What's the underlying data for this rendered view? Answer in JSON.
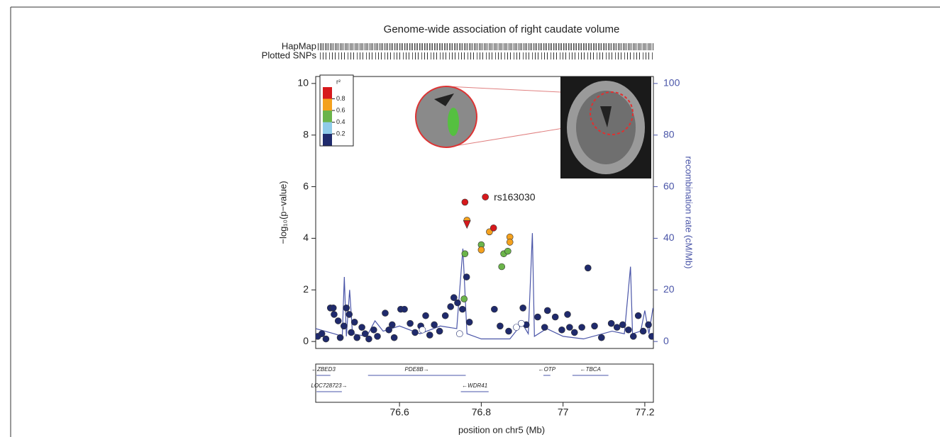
{
  "chart_data": {
    "type": "scatter",
    "title": "Genome-wide association of right caudate volume",
    "rug_labels": [
      "HapMap",
      "Plotted SNPs"
    ],
    "x_label": "position on chr5 (Mb)",
    "y_label": "−log₁₀(p−value)",
    "y2_label": "recombination rate (cM/Mb)",
    "annotation": {
      "text": "rs163030",
      "x": 76.81,
      "y": 5.6
    },
    "xlim": [
      76.395,
      77.221
    ],
    "xticks": [
      76.6,
      76.8,
      77,
      77.2
    ],
    "ylim": [
      -0.27,
      10.27
    ],
    "yticks": [
      0,
      2,
      4,
      6,
      8,
      10
    ],
    "y2lim": [
      -2.7,
      102.7
    ],
    "y2ticks": [
      0,
      20,
      40,
      60,
      80,
      100
    ],
    "legend": {
      "title": "r²",
      "colors": [
        "#d7191c",
        "#f4a11e",
        "#6bb44a",
        "#8fcbe9",
        "#1f2a6c"
      ],
      "ticks": [
        0.8,
        0.6,
        0.4,
        0.2
      ]
    },
    "series": [
      {
        "type": "line",
        "axis": "y2",
        "color": "#4a55a8",
        "x": [
          76.395,
          76.44,
          76.46,
          76.465,
          76.47,
          76.478,
          76.485,
          76.52,
          76.54,
          76.56,
          76.6,
          76.65,
          76.7,
          76.74,
          76.755,
          76.765,
          76.8,
          76.87,
          76.9,
          76.915,
          76.925,
          76.93,
          76.96,
          77,
          77.05,
          77.12,
          77.15,
          77.165,
          77.17,
          77.19,
          77.2,
          77.21,
          77.22
        ],
        "values": [
          5,
          3,
          2,
          25,
          2,
          20,
          3,
          2,
          8,
          4,
          6,
          3,
          6,
          5,
          36,
          3,
          1,
          1,
          7,
          3,
          42,
          2,
          5,
          2,
          1,
          4,
          3,
          29,
          3,
          4,
          12,
          3,
          13
        ]
      },
      {
        "color": "#1f2a6c",
        "x": [
          76.4,
          76.41,
          76.42,
          76.431,
          76.438,
          76.44,
          76.45,
          76.455,
          76.464,
          76.47,
          76.477,
          76.482,
          76.49,
          76.496,
          76.508,
          76.516,
          76.525,
          76.537,
          76.546,
          76.565,
          76.574,
          76.582,
          76.587,
          76.603,
          76.612,
          76.626,
          76.638,
          76.652,
          76.664,
          76.674,
          76.685,
          76.698,
          76.712,
          76.725,
          76.733,
          76.742,
          76.754,
          76.764,
          76.771,
          76.832,
          76.846,
          76.867,
          76.902,
          76.91,
          76.938,
          76.955,
          76.962,
          76.981,
          76.997,
          77.011,
          77.016,
          77.028,
          77.046,
          77.061,
          77.077,
          77.094,
          77.118,
          77.132,
          77.146,
          77.16,
          77.172,
          77.184,
          77.196,
          77.209,
          77.217
        ],
        "values": [
          0.2,
          0.3,
          0.1,
          1.3,
          1.3,
          1.05,
          0.8,
          0.15,
          0.6,
          1.3,
          1.05,
          0.35,
          0.75,
          0.15,
          0.55,
          0.3,
          0.1,
          0.45,
          0.2,
          1.1,
          0.45,
          0.65,
          0.15,
          1.25,
          1.25,
          0.7,
          0.35,
          0.6,
          1.0,
          0.25,
          0.65,
          0.4,
          1.0,
          1.35,
          1.7,
          1.5,
          1.25,
          2.5,
          0.75,
          1.25,
          0.6,
          0.4,
          1.3,
          0.65,
          0.95,
          0.55,
          1.2,
          0.95,
          0.45,
          1.05,
          0.55,
          0.35,
          0.55,
          2.85,
          0.6,
          0.15,
          0.7,
          0.55,
          0.65,
          0.45,
          0.2,
          1.0,
          0.4,
          0.65,
          0.2
        ]
      },
      {
        "color": "#ffffff",
        "x": [
          76.656,
          76.747,
          76.886,
          76.898
        ],
        "values": [
          0.45,
          0.3,
          0.55,
          0.7
        ]
      },
      {
        "color": "#6bb44a",
        "x": [
          76.76,
          76.8,
          76.855,
          76.865,
          76.85,
          76.758
        ],
        "values": [
          3.4,
          3.75,
          3.4,
          3.5,
          2.9,
          1.65
        ]
      },
      {
        "color": "#f4a11e",
        "x": [
          76.765,
          76.82,
          76.8,
          76.87,
          76.87
        ],
        "values": [
          4.7,
          4.25,
          3.55,
          4.05,
          3.85
        ]
      },
      {
        "color": "#d7191c",
        "x": [
          76.76,
          76.83,
          76.81
        ],
        "values": [
          5.4,
          4.4,
          5.6
        ]
      },
      {
        "color": "#d7191c",
        "marker": "triangle",
        "x": [
          76.765
        ],
        "values": [
          4.55
        ]
      }
    ],
    "genes": [
      {
        "label": "←ZBED3",
        "start": 76.397,
        "end": 76.431,
        "row": 0
      },
      {
        "label": "PDE8B→",
        "start": 76.523,
        "end": 76.762,
        "row": 0
      },
      {
        "label": "←OTP",
        "start": 76.952,
        "end": 76.969,
        "row": 0
      },
      {
        "label": "←TBCA",
        "start": 77.023,
        "end": 77.111,
        "row": 0
      },
      {
        "label": "LOC728723→",
        "start": 76.397,
        "end": 76.459,
        "row": 1
      },
      {
        "label": "←WDR41",
        "start": 76.75,
        "end": 76.818,
        "row": 1
      }
    ]
  }
}
